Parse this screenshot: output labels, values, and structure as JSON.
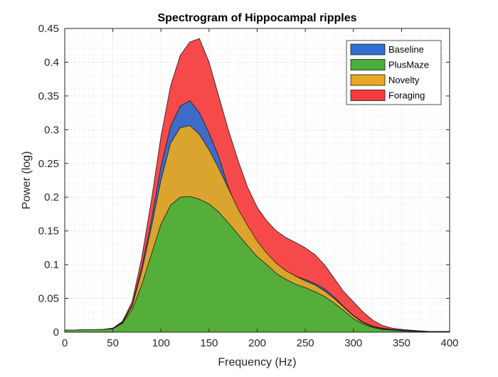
{
  "chart_data": {
    "type": "area",
    "title": "Spectrogram of Hippocampal ripples",
    "xlabel": "Frequency (Hz)",
    "ylabel": "Power (log)",
    "xlim": [
      0,
      400
    ],
    "ylim": [
      0,
      0.45
    ],
    "xticks": [
      0,
      50,
      100,
      150,
      200,
      250,
      300,
      350,
      400
    ],
    "yticks": [
      0,
      0.05,
      0.1,
      0.15,
      0.2,
      0.25,
      0.3,
      0.35,
      0.4,
      0.45
    ],
    "xtick_labels": [
      "0",
      "50",
      "100",
      "150",
      "200",
      "250",
      "300",
      "350",
      "400"
    ],
    "ytick_labels": [
      "0",
      "0.05",
      "0.1",
      "0.15",
      "0.2",
      "0.25",
      "0.3",
      "0.35",
      "0.4",
      "0.45"
    ],
    "grid": true,
    "minor_grid": true,
    "legend_position": "top-right",
    "draw_order": [
      "Foraging",
      "Baseline",
      "Novelty",
      "PlusMaze"
    ],
    "x": [
      0,
      40,
      50,
      60,
      70,
      80,
      90,
      100,
      110,
      120,
      130,
      140,
      150,
      160,
      170,
      180,
      190,
      200,
      210,
      220,
      230,
      240,
      250,
      260,
      270,
      280,
      290,
      300,
      310,
      320,
      330,
      340,
      350,
      360,
      370,
      380,
      400
    ],
    "series": [
      {
        "name": "Baseline",
        "color": "#2f6fd1",
        "values": [
          0.003,
          0.004,
          0.006,
          0.015,
          0.04,
          0.095,
          0.165,
          0.245,
          0.305,
          0.335,
          0.343,
          0.325,
          0.295,
          0.26,
          0.215,
          0.18,
          0.153,
          0.13,
          0.113,
          0.1,
          0.09,
          0.083,
          0.078,
          0.072,
          0.064,
          0.052,
          0.038,
          0.025,
          0.015,
          0.009,
          0.006,
          0.004,
          0.003,
          0.002,
          0.001,
          0.001,
          0.001
        ]
      },
      {
        "name": "PlusMaze",
        "color": "#4aaf3c",
        "values": [
          0.003,
          0.004,
          0.005,
          0.013,
          0.033,
          0.07,
          0.115,
          0.16,
          0.188,
          0.2,
          0.201,
          0.197,
          0.19,
          0.178,
          0.162,
          0.145,
          0.128,
          0.112,
          0.1,
          0.087,
          0.078,
          0.071,
          0.066,
          0.06,
          0.053,
          0.043,
          0.032,
          0.02,
          0.012,
          0.007,
          0.004,
          0.003,
          0.002,
          0.001,
          0.001,
          0.001,
          0.0
        ]
      },
      {
        "name": "Novelty",
        "color": "#e8a922",
        "values": [
          0.003,
          0.004,
          0.006,
          0.014,
          0.038,
          0.09,
          0.155,
          0.225,
          0.28,
          0.303,
          0.306,
          0.293,
          0.27,
          0.243,
          0.213,
          0.183,
          0.158,
          0.135,
          0.117,
          0.102,
          0.091,
          0.083,
          0.076,
          0.07,
          0.061,
          0.05,
          0.037,
          0.024,
          0.014,
          0.008,
          0.005,
          0.003,
          0.002,
          0.002,
          0.001,
          0.001,
          0.001
        ]
      },
      {
        "name": "Foraging",
        "color": "#f53b3b",
        "values": [
          0.003,
          0.004,
          0.006,
          0.016,
          0.045,
          0.11,
          0.195,
          0.29,
          0.365,
          0.41,
          0.43,
          0.435,
          0.4,
          0.35,
          0.3,
          0.255,
          0.215,
          0.185,
          0.165,
          0.15,
          0.14,
          0.133,
          0.125,
          0.115,
          0.1,
          0.08,
          0.06,
          0.045,
          0.03,
          0.018,
          0.01,
          0.006,
          0.004,
          0.003,
          0.002,
          0.001,
          0.001
        ]
      }
    ]
  }
}
